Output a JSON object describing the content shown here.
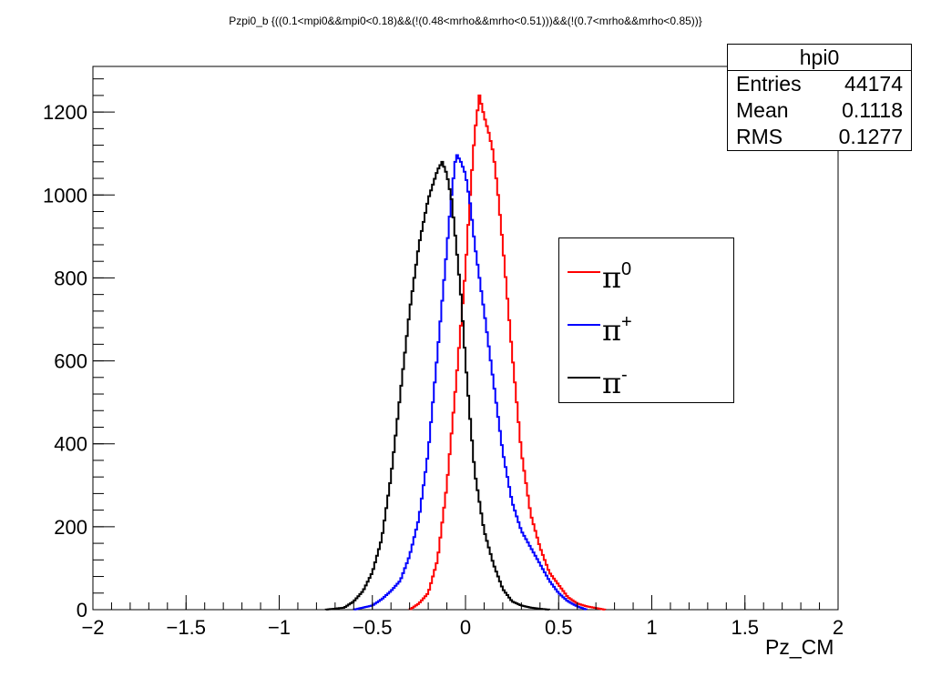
{
  "title": "Pzpi0_b {((0.1<mpi0&&mpi0<0.18)&&(!(0.48<mrho&&mrho<0.51)))&&(!(0.7<mrho&&mrho<0.85))}",
  "stats": {
    "name": "hpi0",
    "rows": [
      {
        "label": "Entries",
        "value": "44174"
      },
      {
        "label": "Mean",
        "value": "0.1118"
      },
      {
        "label": "RMS",
        "value": "0.1277"
      }
    ]
  },
  "legend": [
    {
      "label": "π",
      "sup": "0",
      "color": "#ff0000"
    },
    {
      "label": "π",
      "sup": "+",
      "color": "#0000ff"
    },
    {
      "label": "π",
      "sup": "-",
      "color": "#000000"
    }
  ],
  "chart_data": {
    "type": "line",
    "title": "Pzpi0_b {((0.1<mpi0&&mpi0<0.18)&&(!(0.48<mrho&&mrho<0.51)))&&(!(0.7<mrho&&mrho<0.85))}",
    "xlabel": "Pz_CM",
    "ylabel": "",
    "xlim": [
      -2,
      2
    ],
    "ylim": [
      0,
      1310
    ],
    "x_ticks": [
      "−2",
      "−1.5",
      "−1",
      "−0.5",
      "0",
      "0.5",
      "1",
      "1.5",
      "2"
    ],
    "x_tick_values": [
      -2,
      -1.5,
      -1,
      -0.5,
      0,
      0.5,
      1,
      1.5,
      2
    ],
    "y_ticks": [
      "0",
      "200",
      "400",
      "600",
      "800",
      "1000",
      "1200"
    ],
    "y_tick_values": [
      0,
      200,
      400,
      600,
      800,
      1000,
      1200
    ],
    "grid": false,
    "legend_position": "right",
    "series": [
      {
        "name": "π0",
        "color": "#ff0000",
        "x": [
          -0.3,
          -0.25,
          -0.2,
          -0.15,
          -0.1,
          -0.05,
          0.0,
          0.025,
          0.05,
          0.075,
          0.1,
          0.125,
          0.15,
          0.175,
          0.2,
          0.25,
          0.3,
          0.35,
          0.4,
          0.45,
          0.5,
          0.55,
          0.6,
          0.65,
          0.7,
          0.75
        ],
        "y": [
          0,
          15,
          40,
          120,
          300,
          550,
          820,
          1000,
          1150,
          1240,
          1190,
          1150,
          1100,
          1000,
          880,
          620,
          380,
          230,
          150,
          90,
          60,
          30,
          15,
          8,
          4,
          0
        ]
      },
      {
        "name": "π+",
        "color": "#0000ff",
        "x": [
          -0.6,
          -0.5,
          -0.45,
          -0.4,
          -0.35,
          -0.3,
          -0.25,
          -0.2,
          -0.15,
          -0.1,
          -0.075,
          -0.05,
          -0.025,
          0.0,
          0.025,
          0.05,
          0.1,
          0.15,
          0.2,
          0.25,
          0.3,
          0.35,
          0.4,
          0.45,
          0.5,
          0.55,
          0.6,
          0.65
        ],
        "y": [
          0,
          10,
          25,
          45,
          70,
          130,
          220,
          380,
          620,
          870,
          1000,
          1100,
          1080,
          1050,
          980,
          880,
          720,
          550,
          380,
          260,
          190,
          150,
          110,
          70,
          40,
          20,
          8,
          0
        ]
      },
      {
        "name": "π-",
        "color": "#000000",
        "x": [
          -0.75,
          -0.65,
          -0.6,
          -0.55,
          -0.5,
          -0.45,
          -0.4,
          -0.35,
          -0.3,
          -0.25,
          -0.2,
          -0.15,
          -0.125,
          -0.1,
          -0.075,
          -0.05,
          -0.025,
          0.0,
          0.025,
          0.05,
          0.1,
          0.15,
          0.2,
          0.25,
          0.3,
          0.35,
          0.4,
          0.45
        ],
        "y": [
          0,
          5,
          20,
          45,
          90,
          170,
          320,
          520,
          720,
          880,
          990,
          1060,
          1080,
          1050,
          990,
          880,
          760,
          600,
          460,
          330,
          190,
          110,
          50,
          20,
          10,
          5,
          2,
          0
        ]
      }
    ]
  }
}
